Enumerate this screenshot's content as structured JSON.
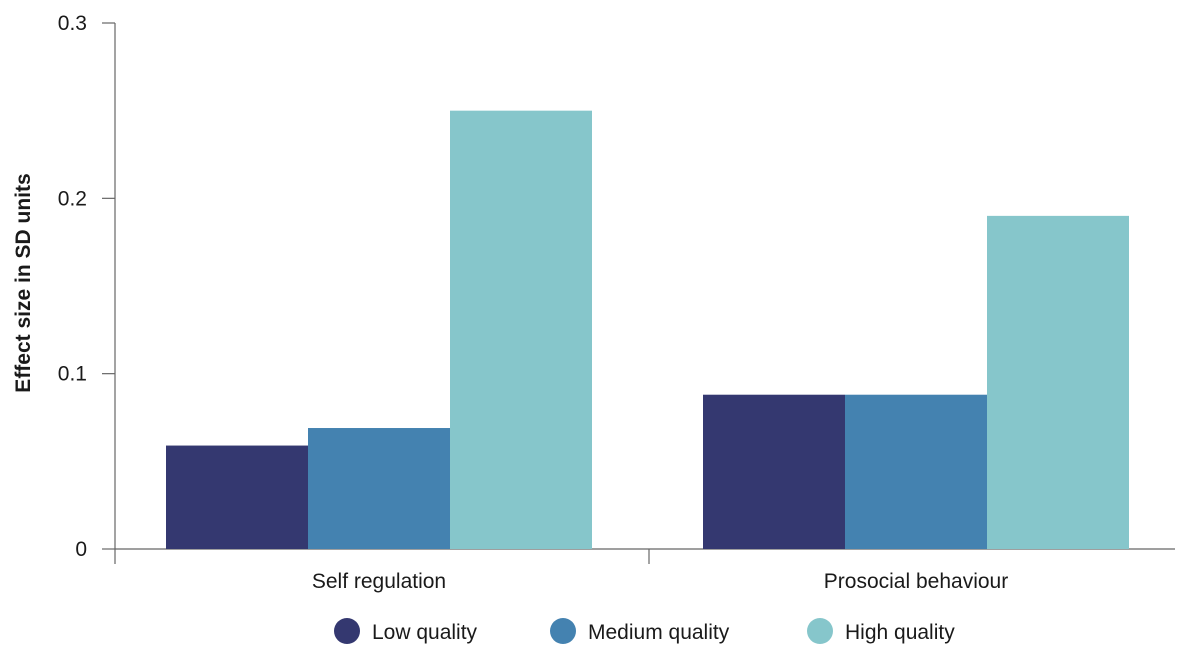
{
  "chart_data": {
    "type": "bar",
    "title": "",
    "xlabel": "",
    "ylabel": "Effect size in SD units",
    "ylim": [
      0,
      0.3
    ],
    "yticks": [
      0,
      0.1,
      0.2,
      0.3
    ],
    "ytick_labels": [
      "0",
      "0.1",
      "0.2",
      "0.3"
    ],
    "categories": [
      "Self regulation",
      "Prosocial behaviour"
    ],
    "series": [
      {
        "name": "Low quality",
        "color": "#343870",
        "values": [
          0.059,
          0.088
        ]
      },
      {
        "name": "Medium quality",
        "color": "#4482b0",
        "values": [
          0.069,
          0.088
        ]
      },
      {
        "name": "High quality",
        "color": "#86c6cb",
        "values": [
          0.25,
          0.19
        ]
      }
    ],
    "grid": false,
    "legend_position": "bottom"
  }
}
